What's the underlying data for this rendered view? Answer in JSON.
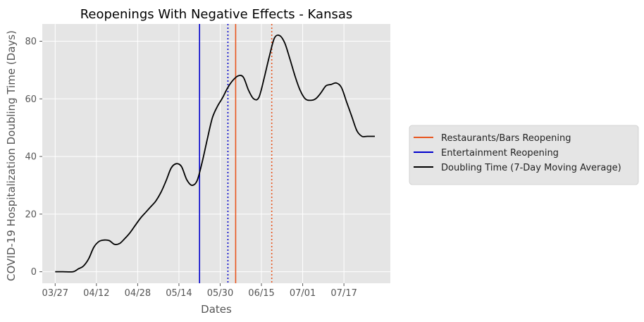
{
  "chart_data": {
    "type": "line",
    "title": "Reopenings With Negative Effects - Kansas",
    "xlabel": "Dates",
    "ylabel": "COVID-19 Hospitalization Doubling Time (Days)",
    "grid": true,
    "legend_position": "outside-right",
    "xlim": [
      "2020-03-22",
      "2020-08-04"
    ],
    "ylim": [
      -4,
      86
    ],
    "x_ticks": [
      "03/27",
      "04/12",
      "04/28",
      "05/14",
      "05/30",
      "06/15",
      "07/01",
      "07/17"
    ],
    "x_tick_dates": [
      "2020-03-27",
      "2020-04-12",
      "2020-04-28",
      "2020-05-14",
      "2020-05-30",
      "2020-06-15",
      "2020-07-01",
      "2020-07-17"
    ],
    "y_ticks": [
      0,
      20,
      40,
      60,
      80
    ],
    "series": [
      {
        "name": "Doubling Time (7-Day Moving Average)",
        "color": "#000000",
        "x": [
          "2020-03-27",
          "2020-03-30",
          "2020-04-03",
          "2020-04-05",
          "2020-04-07",
          "2020-04-09",
          "2020-04-11",
          "2020-04-13",
          "2020-04-15",
          "2020-04-17",
          "2020-04-19",
          "2020-04-21",
          "2020-04-23",
          "2020-04-25",
          "2020-04-27",
          "2020-04-29",
          "2020-05-01",
          "2020-05-03",
          "2020-05-05",
          "2020-05-07",
          "2020-05-09",
          "2020-05-11",
          "2020-05-13",
          "2020-05-15",
          "2020-05-17",
          "2020-05-19",
          "2020-05-21",
          "2020-05-23",
          "2020-05-25",
          "2020-05-27",
          "2020-05-29",
          "2020-05-31",
          "2020-06-02",
          "2020-06-04",
          "2020-06-06",
          "2020-06-08",
          "2020-06-10",
          "2020-06-12",
          "2020-06-14",
          "2020-06-16",
          "2020-06-18",
          "2020-06-20",
          "2020-06-22",
          "2020-06-24",
          "2020-06-26",
          "2020-06-28",
          "2020-06-30",
          "2020-07-02",
          "2020-07-04",
          "2020-07-06",
          "2020-07-08",
          "2020-07-10",
          "2020-07-12",
          "2020-07-14",
          "2020-07-16",
          "2020-07-18",
          "2020-07-20",
          "2020-07-22",
          "2020-07-24",
          "2020-07-26",
          "2020-07-28",
          "2020-07-29"
        ],
        "y": [
          0,
          0,
          0,
          1,
          2,
          4.5,
          8.5,
          10.5,
          11,
          10.8,
          9.5,
          9.8,
          11.5,
          13.5,
          16,
          18.5,
          20.5,
          22.5,
          24.5,
          27.5,
          31.5,
          36,
          37.5,
          36.5,
          32,
          30,
          31.5,
          38,
          46,
          53.5,
          57.5,
          60.5,
          64,
          66.5,
          68,
          67.5,
          63,
          60,
          60.5,
          67,
          74.5,
          81,
          82,
          79.5,
          74,
          68,
          63,
          60,
          59.5,
          60,
          62,
          64.5,
          65,
          65.5,
          64,
          59,
          54,
          49,
          47,
          47,
          47,
          47
        ]
      }
    ],
    "vertical_lines": [
      {
        "name": "Restaurants/Bars Reopening",
        "date": "2020-06-05",
        "color": "#e8551e",
        "style": "solid"
      },
      {
        "name": "Restaurants/Bars Reopening",
        "date": "2020-06-19",
        "color": "#e8551e",
        "style": "dotted"
      },
      {
        "name": "Entertainment Reopening",
        "date": "2020-05-22",
        "color": "#0000cc",
        "style": "solid"
      },
      {
        "name": "Entertainment Reopening",
        "date": "2020-06-02",
        "color": "#0000cc",
        "style": "dotted"
      }
    ],
    "legend": [
      {
        "label": "Restaurants/Bars Reopening",
        "color": "#e8551e"
      },
      {
        "label": "Entertainment Reopening",
        "color": "#0000cc"
      },
      {
        "label": "Doubling Time (7-Day Moving Average)",
        "color": "#000000"
      }
    ],
    "colors": {
      "plot_background": "#e5e5e5",
      "grid": "#ffffff",
      "tick_text": "#555555"
    }
  }
}
